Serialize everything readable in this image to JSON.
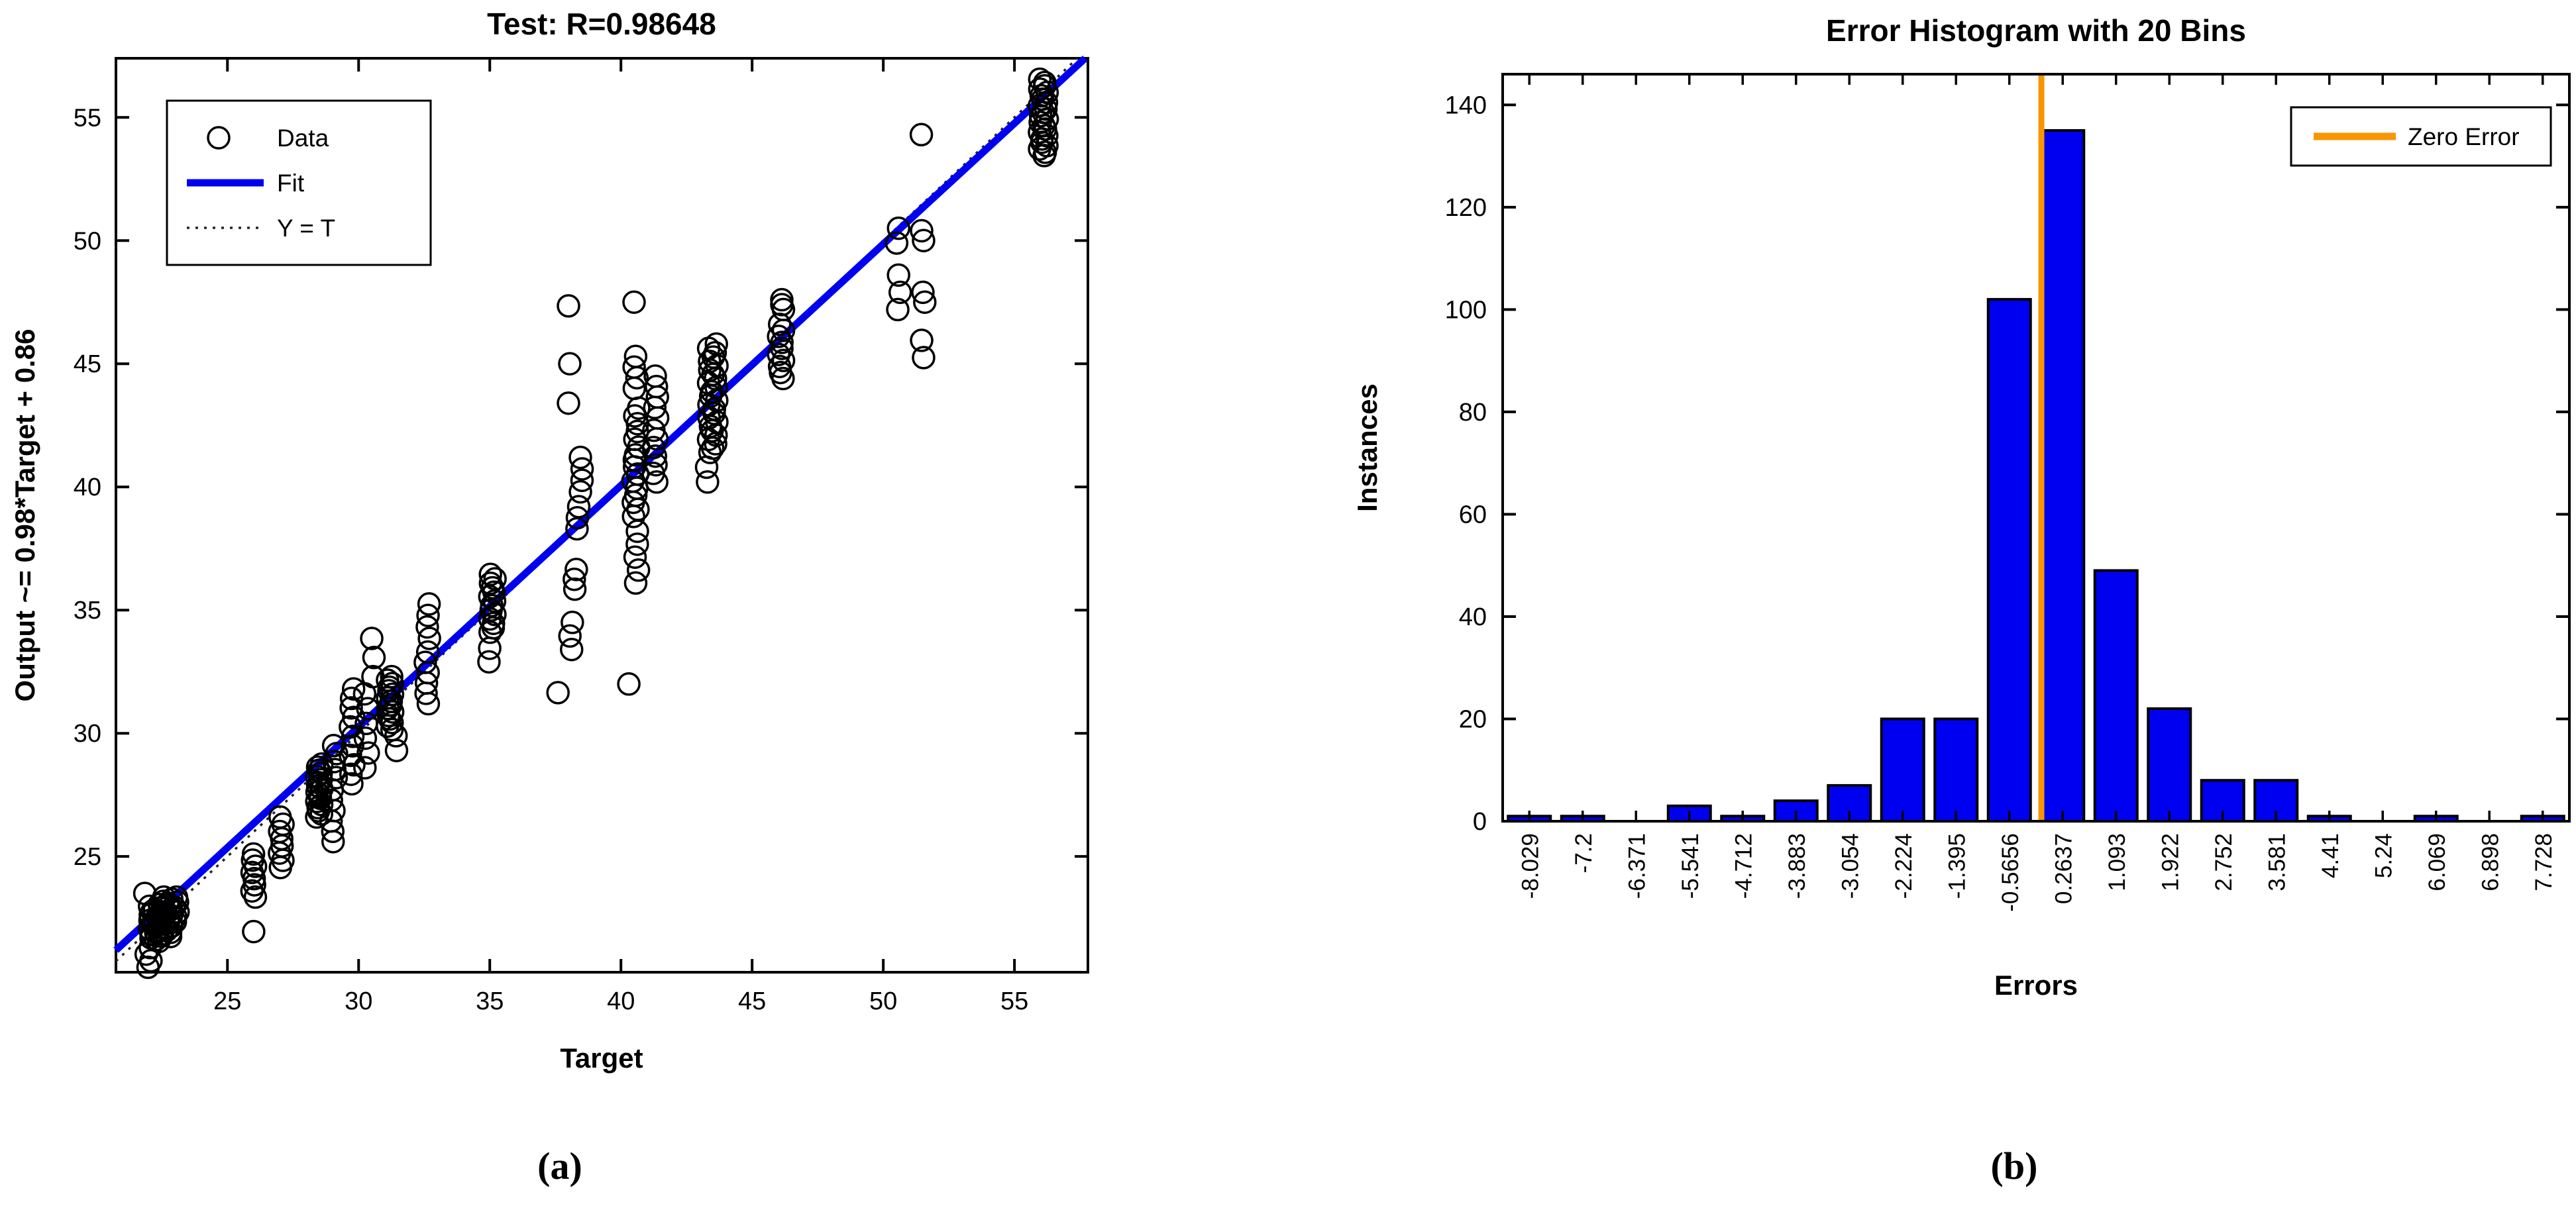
{
  "captions": {
    "a": "(a)",
    "b": "(b)"
  },
  "chart_data": [
    {
      "type": "scatter",
      "title": "Test: R=0.98648",
      "xlabel": "Target",
      "ylabel": "Output ~= 0.98*Target + 0.86",
      "xlim": [
        20.75,
        57.8
      ],
      "ylim": [
        20.3,
        57.4
      ],
      "xticks": [
        25,
        30,
        35,
        40,
        45,
        50,
        55
      ],
      "yticks": [
        25,
        30,
        35,
        40,
        45,
        50,
        55
      ],
      "legend": [
        {
          "label": "Data",
          "marker": "circle-marker",
          "color": "#000000"
        },
        {
          "label": "Fit",
          "marker": "solid-line",
          "color": "#0000f0"
        },
        {
          "label": "Y = T",
          "marker": "dotted-line",
          "color": "#222222"
        }
      ],
      "fit": {
        "slope": 0.98,
        "intercept": 0.86
      },
      "identity": {
        "slope": 1,
        "intercept": 0
      },
      "clusters_key": "[target_x, output_y_min, output_y_max, count, x_jitter]",
      "clusters": [
        [
          22.25,
          21.55,
          23.05,
          22,
          0.22
        ],
        [
          22.7,
          21.75,
          23.35,
          20,
          0.18
        ],
        [
          22.0,
          20.5,
          21.3,
          4,
          0.1
        ],
        [
          21.85,
          23.5,
          23.5,
          1,
          0
        ],
        [
          23.05,
          22.35,
          23.35,
          6,
          0.08
        ],
        [
          26.0,
          21.95,
          21.95,
          1,
          0
        ],
        [
          26.0,
          23.35,
          25.1,
          8,
          0.07
        ],
        [
          27.05,
          24.55,
          26.6,
          8,
          0.07
        ],
        [
          28.5,
          26.6,
          28.75,
          18,
          0.1
        ],
        [
          29.0,
          25.6,
          27.7,
          6,
          0.06
        ],
        [
          29.1,
          28.2,
          29.5,
          5,
          0.06
        ],
        [
          29.75,
          27.95,
          31.8,
          11,
          0.07
        ],
        [
          30.3,
          28.6,
          31.6,
          6,
          0.07
        ],
        [
          30.55,
          32.3,
          33.85,
          3,
          0.05
        ],
        [
          31.2,
          30.15,
          32.3,
          16,
          0.1
        ],
        [
          31.45,
          29.3,
          29.9,
          2,
          0.04
        ],
        [
          32.6,
          31.2,
          33.3,
          6,
          0.06
        ],
        [
          32.65,
          33.85,
          35.25,
          4,
          0.05
        ],
        [
          35.1,
          34.1,
          36.45,
          14,
          0.1
        ],
        [
          35.0,
          32.9,
          33.45,
          2,
          0.05
        ],
        [
          37.6,
          31.65,
          31.65,
          1,
          0
        ],
        [
          38.1,
          33.4,
          34.5,
          3,
          0.05
        ],
        [
          38.25,
          35.85,
          36.65,
          3,
          0.05
        ],
        [
          38.35,
          38.3,
          39.2,
          3,
          0.05
        ],
        [
          38.5,
          39.8,
          41.2,
          4,
          0.05
        ],
        [
          38.0,
          43.4,
          43.4,
          1,
          0
        ],
        [
          38.05,
          45.0,
          45.0,
          1,
          0
        ],
        [
          38.0,
          47.35,
          47.35,
          1,
          0
        ],
        [
          40.3,
          32.0,
          32.0,
          1,
          0
        ],
        [
          40.6,
          36.1,
          38.2,
          5,
          0.07
        ],
        [
          40.55,
          38.8,
          41.1,
          9,
          0.1
        ],
        [
          40.6,
          41.3,
          43.2,
          7,
          0.08
        ],
        [
          40.55,
          44.0,
          45.3,
          4,
          0.06
        ],
        [
          40.5,
          47.5,
          47.5,
          1,
          0
        ],
        [
          41.3,
          40.2,
          42.3,
          7,
          0.07
        ],
        [
          41.35,
          42.8,
          44.5,
          5,
          0.06
        ],
        [
          43.5,
          41.4,
          45.8,
          26,
          0.16
        ],
        [
          43.3,
          40.2,
          40.8,
          2,
          0.05
        ],
        [
          46.1,
          44.4,
          46.6,
          10,
          0.1
        ],
        [
          46.15,
          47.2,
          47.6,
          3,
          0.05
        ],
        [
          50.6,
          47.2,
          48.6,
          3,
          0.05
        ],
        [
          50.55,
          49.9,
          50.5,
          2,
          0.04
        ],
        [
          51.5,
          45.25,
          45.95,
          2,
          0.04
        ],
        [
          51.55,
          47.5,
          47.9,
          2,
          0.04
        ],
        [
          51.5,
          50.0,
          50.4,
          2,
          0.04
        ],
        [
          51.45,
          54.3,
          54.3,
          1,
          0
        ],
        [
          56.1,
          53.45,
          56.55,
          24,
          0.15
        ]
      ]
    },
    {
      "type": "bar",
      "title": "Error Histogram with 20 Bins",
      "xlabel": "Errors",
      "ylabel": "Instances",
      "categories": [
        "-8.029",
        "-7.2",
        "-6.371",
        "-5.541",
        "-4.712",
        "-3.883",
        "-3.054",
        "-2.224",
        "-1.395",
        "-0.5656",
        "0.2637",
        "1.093",
        "1.922",
        "2.752",
        "3.581",
        "4.41",
        "5.24",
        "6.069",
        "6.898",
        "7.728"
      ],
      "values": [
        1,
        1,
        0,
        3,
        1,
        4,
        7,
        20,
        20,
        102,
        135,
        49,
        22,
        8,
        8,
        1,
        0,
        1,
        0,
        1
      ],
      "yticks": [
        0,
        20,
        40,
        60,
        80,
        100,
        120,
        140
      ],
      "ylim": [
        0,
        146
      ],
      "bar_color": "#0000f0",
      "bar_edge_color": "#000000",
      "zero_line": {
        "label": "Zero Error",
        "color": "#f89500",
        "x_bin_position": 10.1
      },
      "legend_position": "top-right"
    }
  ]
}
